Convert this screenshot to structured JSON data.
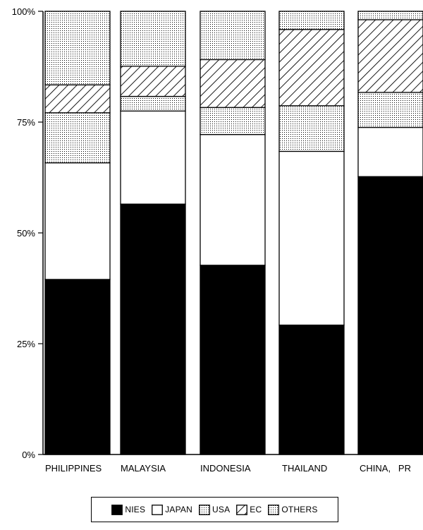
{
  "chart_data": {
    "type": "bar",
    "stacked": true,
    "percent": true,
    "title": "",
    "xlabel": "",
    "ylabel": "",
    "ylim": [
      0,
      100
    ],
    "yticks": [
      "0%",
      "25%",
      "50%",
      "75%",
      "100%"
    ],
    "categories": [
      "PHILIPPINES",
      "MALAYSIA",
      "INDONESIA",
      "THAILAND",
      "CHINA,   PR"
    ],
    "series": [
      {
        "name": "NIES",
        "fill": "black",
        "values": [
          39.5,
          56.5,
          42.7,
          29.2,
          62.7
        ]
      },
      {
        "name": "JAPAN",
        "fill": "white",
        "values": [
          26.3,
          21.0,
          29.5,
          39.2,
          11.1
        ]
      },
      {
        "name": "USA",
        "fill": "dotted",
        "values": [
          11.3,
          3.3,
          6.1,
          10.3,
          7.9
        ]
      },
      {
        "name": "EC",
        "fill": "hatched",
        "values": [
          6.3,
          6.8,
          10.8,
          17.2,
          16.4
        ]
      },
      {
        "name": "OTHERS",
        "fill": "dotted",
        "values": [
          16.6,
          12.4,
          10.9,
          4.1,
          1.9
        ]
      }
    ],
    "grid": false,
    "legend_position": "bottom-center"
  }
}
